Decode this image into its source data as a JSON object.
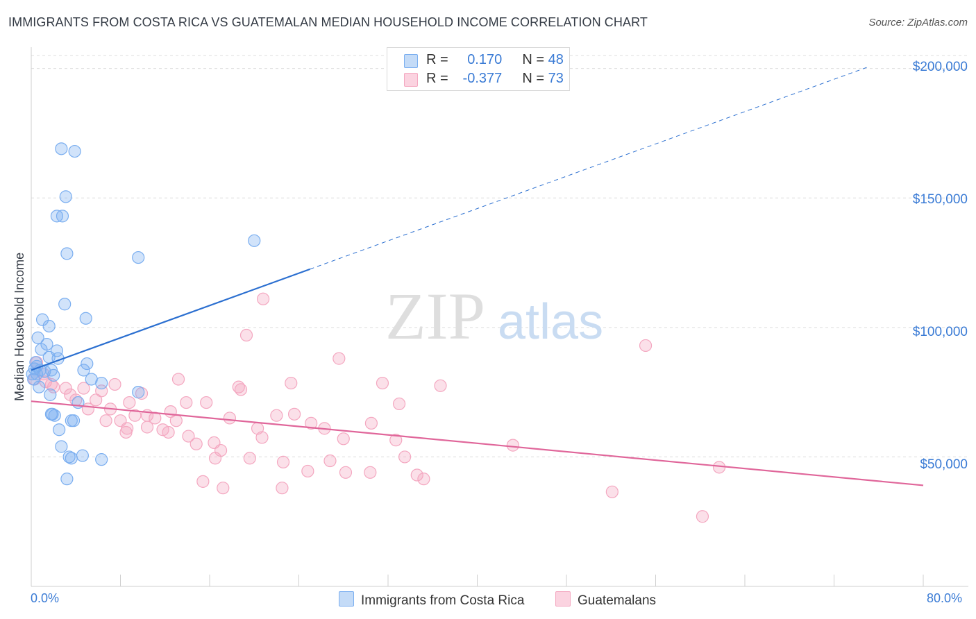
{
  "title": "IMMIGRANTS FROM COSTA RICA VS GUATEMALAN MEDIAN HOUSEHOLD INCOME CORRELATION CHART",
  "source": "Source: ZipAtlas.com",
  "watermark": {
    "zip": "ZIP",
    "atlas": "atlas"
  },
  "legend": {
    "r_label": "R =",
    "n_label": "N =",
    "rows": [
      {
        "r": "0.170",
        "n": "48"
      },
      {
        "r": "-0.377",
        "n": "73"
      }
    ]
  },
  "chart_data": {
    "type": "scatter",
    "title": "IMMIGRANTS FROM COSTA RICA VS GUATEMALAN MEDIAN HOUSEHOLD INCOME CORRELATION CHART",
    "xlabel": "",
    "ylabel": "Median Household Income",
    "xlim": [
      0,
      80
    ],
    "ylim": [
      0,
      205000
    ],
    "x_tick_labels": [
      "0.0%",
      "80.0%"
    ],
    "y_ticks": [
      50000,
      100000,
      150000,
      200000
    ],
    "y_tick_labels": [
      "$50,000",
      "$100,000",
      "$150,000",
      "$200,000"
    ],
    "grid": "horizontal dashed",
    "legend_position": "top-center",
    "series": [
      {
        "name": "Immigrants from Costa Rica",
        "color": "#7aaef0",
        "line_color": "#2b6fd0",
        "trend": {
          "x": [
            0,
            25
          ],
          "y": [
            83500,
            122500
          ],
          "extended_to": [
            75,
            200500
          ]
        },
        "points": [
          [
            2.7,
            169000
          ],
          [
            3.9,
            168000
          ],
          [
            3.1,
            150500
          ],
          [
            2.3,
            143000
          ],
          [
            2.8,
            143000
          ],
          [
            3.2,
            128500
          ],
          [
            9.6,
            127000
          ],
          [
            20.0,
            133500
          ],
          [
            3.0,
            109000
          ],
          [
            4.9,
            103500
          ],
          [
            1.0,
            103000
          ],
          [
            1.6,
            100500
          ],
          [
            0.6,
            96000
          ],
          [
            1.4,
            93500
          ],
          [
            0.9,
            91500
          ],
          [
            2.3,
            91000
          ],
          [
            1.6,
            88500
          ],
          [
            2.4,
            88000
          ],
          [
            0.4,
            86500
          ],
          [
            5.0,
            86000
          ],
          [
            0.3,
            84000
          ],
          [
            0.8,
            83500
          ],
          [
            1.8,
            83500
          ],
          [
            4.7,
            83500
          ],
          [
            0.1,
            82000
          ],
          [
            0.5,
            82000
          ],
          [
            2.0,
            81500
          ],
          [
            0.2,
            80000
          ],
          [
            5.4,
            80000
          ],
          [
            6.3,
            78500
          ],
          [
            0.7,
            77000
          ],
          [
            1.7,
            74000
          ],
          [
            9.6,
            75000
          ],
          [
            4.2,
            71000
          ],
          [
            1.8,
            66500
          ],
          [
            2.1,
            66000
          ],
          [
            1.9,
            66500
          ],
          [
            3.6,
            64000
          ],
          [
            3.8,
            64000
          ],
          [
            2.5,
            60500
          ],
          [
            2.7,
            54000
          ],
          [
            3.4,
            50000
          ],
          [
            3.6,
            49500
          ],
          [
            4.6,
            50500
          ],
          [
            6.3,
            49000
          ],
          [
            3.2,
            41500
          ],
          [
            0.5,
            85000
          ],
          [
            1.2,
            83000
          ]
        ]
      },
      {
        "name": "Guatemalans",
        "color": "#f4a7c0",
        "line_color": "#e0669a",
        "trend": {
          "x": [
            0,
            80
          ],
          "y": [
            71500,
            39000
          ]
        },
        "points": [
          [
            0.5,
            86500
          ],
          [
            1.1,
            82000
          ],
          [
            0.3,
            80000
          ],
          [
            1.3,
            79000
          ],
          [
            1.8,
            78000
          ],
          [
            2.0,
            77000
          ],
          [
            3.1,
            76500
          ],
          [
            4.7,
            76500
          ],
          [
            6.3,
            75500
          ],
          [
            7.5,
            78000
          ],
          [
            9.9,
            74500
          ],
          [
            3.5,
            74000
          ],
          [
            4.0,
            72000
          ],
          [
            5.8,
            72000
          ],
          [
            8.8,
            71000
          ],
          [
            13.2,
            80000
          ],
          [
            13.9,
            71000
          ],
          [
            15.7,
            71000
          ],
          [
            18.8,
            76000
          ],
          [
            18.6,
            77000
          ],
          [
            23.3,
            78500
          ],
          [
            31.5,
            78500
          ],
          [
            36.7,
            77500
          ],
          [
            33.0,
            70500
          ],
          [
            12.5,
            67500
          ],
          [
            7.1,
            68500
          ],
          [
            5.1,
            68500
          ],
          [
            9.3,
            66000
          ],
          [
            10.4,
            66000
          ],
          [
            11.1,
            65000
          ],
          [
            13.0,
            64000
          ],
          [
            8.0,
            64000
          ],
          [
            6.7,
            64000
          ],
          [
            17.8,
            65000
          ],
          [
            22.0,
            66000
          ],
          [
            23.6,
            66500
          ],
          [
            25.1,
            63000
          ],
          [
            26.3,
            61000
          ],
          [
            30.5,
            63000
          ],
          [
            20.3,
            61000
          ],
          [
            10.4,
            61500
          ],
          [
            8.6,
            61000
          ],
          [
            11.8,
            60500
          ],
          [
            12.3,
            59500
          ],
          [
            8.5,
            59500
          ],
          [
            14.1,
            58000
          ],
          [
            20.7,
            57500
          ],
          [
            14.8,
            55000
          ],
          [
            16.4,
            55500
          ],
          [
            28.0,
            57000
          ],
          [
            32.7,
            56500
          ],
          [
            43.2,
            54500
          ],
          [
            17.0,
            52500
          ],
          [
            16.5,
            49500
          ],
          [
            19.6,
            49500
          ],
          [
            22.6,
            48000
          ],
          [
            26.8,
            48500
          ],
          [
            33.5,
            50000
          ],
          [
            28.2,
            44000
          ],
          [
            24.8,
            44500
          ],
          [
            30.4,
            44000
          ],
          [
            34.6,
            43000
          ],
          [
            35.2,
            41500
          ],
          [
            61.7,
            46000
          ],
          [
            15.4,
            40500
          ],
          [
            17.2,
            38000
          ],
          [
            22.5,
            38000
          ],
          [
            52.1,
            36500
          ],
          [
            60.2,
            27000
          ],
          [
            20.8,
            111000
          ],
          [
            19.3,
            97000
          ],
          [
            27.6,
            88000
          ],
          [
            55.1,
            93000
          ]
        ]
      }
    ]
  }
}
